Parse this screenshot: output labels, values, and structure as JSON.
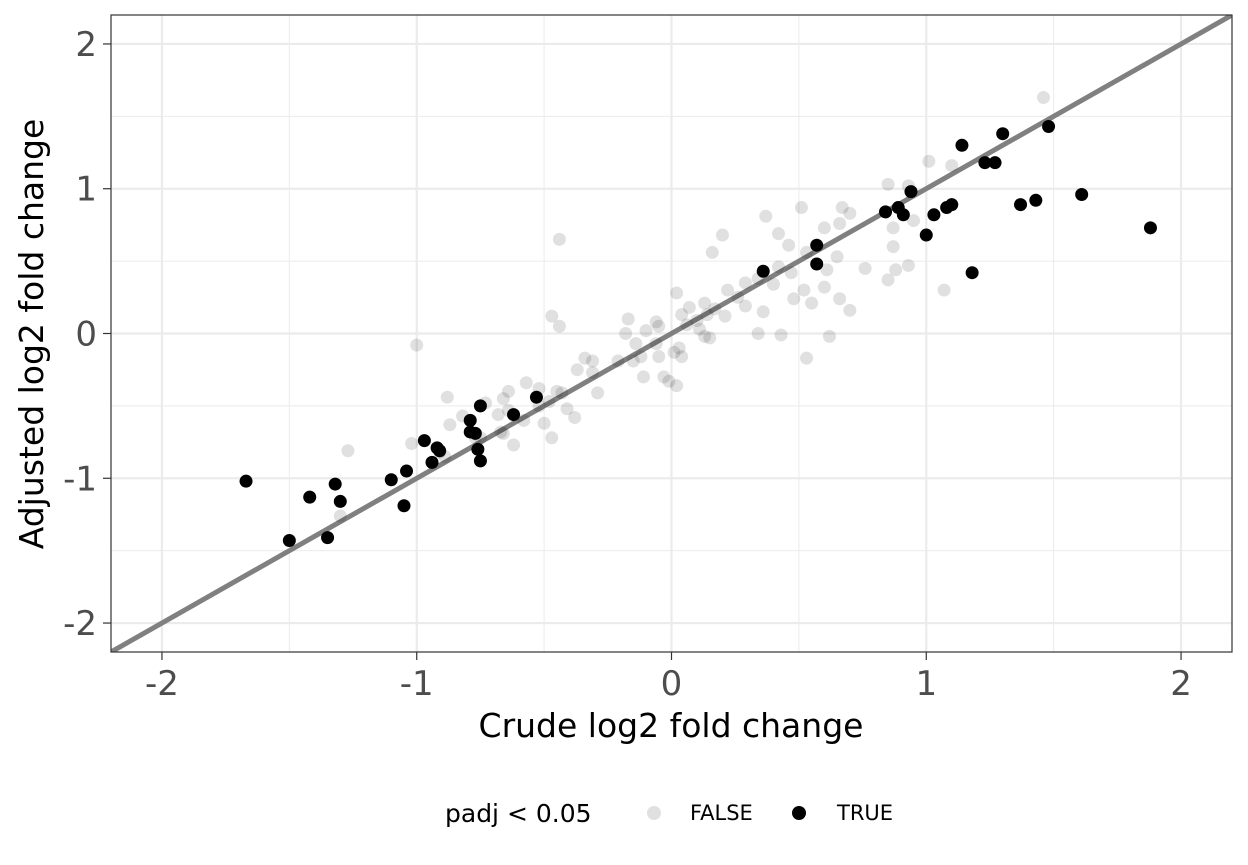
{
  "chart_data": {
    "type": "scatter",
    "xlabel": "Crude log2 fold change",
    "ylabel": "Adjusted log2 fold change",
    "xlim": [
      -2.2,
      2.2
    ],
    "ylim": [
      -2.2,
      2.2
    ],
    "x_ticks": [
      -2,
      -1,
      0,
      1,
      2
    ],
    "y_ticks": [
      -2,
      -1,
      0,
      1,
      2
    ],
    "x_tick_labels": [
      "-2",
      "-1",
      "0",
      "1",
      "2"
    ],
    "y_tick_labels": [
      "-2",
      "-1",
      "0",
      "1",
      "2"
    ],
    "grid": true,
    "reference_line": {
      "slope": 1,
      "intercept": 0,
      "color": "#808080"
    },
    "legend": {
      "title": "padj < 0.05",
      "position": "bottom",
      "entries": [
        {
          "label": "FALSE",
          "color": "#000000",
          "opacity": 0.12
        },
        {
          "label": "TRUE",
          "color": "#000000",
          "opacity": 1
        }
      ]
    },
    "series": [
      {
        "name": "FALSE",
        "color": "#000000",
        "opacity": 0.12,
        "points": [
          [
            1.46,
            1.63
          ],
          [
            1.01,
            1.19
          ],
          [
            1.1,
            1.16
          ],
          [
            0.85,
            1.03
          ],
          [
            0.93,
            1.02
          ],
          [
            0.7,
            0.83
          ],
          [
            0.51,
            0.87
          ],
          [
            0.67,
            0.87
          ],
          [
            0.37,
            0.81
          ],
          [
            0.95,
            0.78
          ],
          [
            0.87,
            0.73
          ],
          [
            0.6,
            0.73
          ],
          [
            0.66,
            0.76
          ],
          [
            0.42,
            0.69
          ],
          [
            0.2,
            0.68
          ],
          [
            -0.44,
            0.65
          ],
          [
            0.46,
            0.61
          ],
          [
            0.16,
            0.56
          ],
          [
            0.87,
            0.6
          ],
          [
            0.53,
            0.56
          ],
          [
            0.65,
            0.53
          ],
          [
            0.93,
            0.47
          ],
          [
            0.88,
            0.44
          ],
          [
            0.76,
            0.45
          ],
          [
            0.61,
            0.44
          ],
          [
            0.42,
            0.46
          ],
          [
            0.47,
            0.42
          ],
          [
            0.34,
            0.38
          ],
          [
            0.4,
            0.34
          ],
          [
            0.29,
            0.35
          ],
          [
            0.52,
            0.3
          ],
          [
            0.6,
            0.32
          ],
          [
            0.85,
            0.37
          ],
          [
            1.07,
            0.3
          ],
          [
            0.22,
            0.3
          ],
          [
            0.26,
            0.25
          ],
          [
            0.48,
            0.24
          ],
          [
            0.55,
            0.21
          ],
          [
            0.66,
            0.24
          ],
          [
            0.7,
            0.16
          ],
          [
            0.36,
            0.15
          ],
          [
            0.29,
            0.19
          ],
          [
            0.13,
            0.21
          ],
          [
            0.17,
            0.17
          ],
          [
            0.21,
            0.12
          ],
          [
            0.02,
            0.28
          ],
          [
            0.07,
            0.18
          ],
          [
            0.04,
            0.13
          ],
          [
            0.14,
            0.13
          ],
          [
            0.1,
            0.09
          ],
          [
            0.06,
            0.06
          ],
          [
            -0.17,
            0.1
          ],
          [
            -0.47,
            0.12
          ],
          [
            -0.44,
            0.05
          ],
          [
            -0.06,
            0.08
          ],
          [
            -0.05,
            0.05
          ],
          [
            -0.1,
            0.02
          ],
          [
            0.11,
            0.03
          ],
          [
            0.13,
            -0.02
          ],
          [
            0.15,
            -0.03
          ],
          [
            0.34,
            0.0
          ],
          [
            0.43,
            -0.01
          ],
          [
            0.62,
            -0.02
          ],
          [
            -0.18,
            0.0
          ],
          [
            -0.14,
            -0.07
          ],
          [
            -0.06,
            -0.07
          ],
          [
            0.03,
            -0.1
          ],
          [
            0.01,
            -0.13
          ],
          [
            -0.12,
            -0.16
          ],
          [
            -0.21,
            -0.19
          ],
          [
            -0.15,
            -0.19
          ],
          [
            -0.05,
            -0.16
          ],
          [
            0.04,
            -0.16
          ],
          [
            0.53,
            -0.17
          ],
          [
            -1.0,
            -0.08
          ],
          [
            -0.34,
            -0.17
          ],
          [
            -0.31,
            -0.19
          ],
          [
            -0.31,
            -0.27
          ],
          [
            -0.37,
            -0.25
          ],
          [
            -0.11,
            -0.3
          ],
          [
            -0.03,
            -0.3
          ],
          [
            -0.01,
            -0.33
          ],
          [
            0.02,
            -0.36
          ],
          [
            -0.29,
            -0.41
          ],
          [
            -0.43,
            -0.41
          ],
          [
            -0.45,
            -0.4
          ],
          [
            -0.52,
            -0.38
          ],
          [
            -0.57,
            -0.34
          ],
          [
            -0.64,
            -0.4
          ],
          [
            -0.88,
            -0.44
          ],
          [
            -0.66,
            -0.45
          ],
          [
            -0.73,
            -0.48
          ],
          [
            -0.48,
            -0.47
          ],
          [
            -0.52,
            -0.5
          ],
          [
            -0.41,
            -0.52
          ],
          [
            -0.64,
            -0.53
          ],
          [
            -0.68,
            -0.56
          ],
          [
            -0.38,
            -0.58
          ],
          [
            -0.5,
            -0.62
          ],
          [
            -0.58,
            -0.6
          ],
          [
            -0.82,
            -0.57
          ],
          [
            -0.87,
            -0.63
          ],
          [
            -0.67,
            -0.68
          ],
          [
            -0.66,
            -0.69
          ],
          [
            -0.47,
            -0.72
          ],
          [
            -0.75,
            -0.72
          ],
          [
            -0.77,
            -0.72
          ],
          [
            -0.62,
            -0.77
          ],
          [
            -1.02,
            -0.76
          ],
          [
            -1.27,
            -0.81
          ],
          [
            -0.91,
            -0.82
          ],
          [
            -0.89,
            -0.85
          ],
          [
            -1.3,
            -1.26
          ]
        ]
      },
      {
        "name": "TRUE",
        "color": "#000000",
        "opacity": 1,
        "points": [
          [
            1.48,
            1.43
          ],
          [
            1.3,
            1.38
          ],
          [
            1.14,
            1.3
          ],
          [
            1.27,
            1.18
          ],
          [
            1.23,
            1.18
          ],
          [
            0.94,
            0.98
          ],
          [
            1.61,
            0.96
          ],
          [
            1.43,
            0.92
          ],
          [
            1.37,
            0.89
          ],
          [
            1.1,
            0.89
          ],
          [
            1.08,
            0.87
          ],
          [
            0.89,
            0.87
          ],
          [
            0.91,
            0.82
          ],
          [
            0.84,
            0.84
          ],
          [
            1.03,
            0.82
          ],
          [
            1.88,
            0.73
          ],
          [
            1.0,
            0.68
          ],
          [
            0.57,
            0.61
          ],
          [
            0.57,
            0.48
          ],
          [
            0.36,
            0.43
          ],
          [
            1.18,
            0.42
          ],
          [
            -0.53,
            -0.44
          ],
          [
            -0.62,
            -0.56
          ],
          [
            -0.75,
            -0.5
          ],
          [
            -0.79,
            -0.6
          ],
          [
            -0.79,
            -0.68
          ],
          [
            -0.77,
            -0.69
          ],
          [
            -0.97,
            -0.74
          ],
          [
            -0.92,
            -0.79
          ],
          [
            -0.91,
            -0.81
          ],
          [
            -0.76,
            -0.8
          ],
          [
            -0.75,
            -0.88
          ],
          [
            -0.94,
            -0.89
          ],
          [
            -1.04,
            -0.95
          ],
          [
            -1.1,
            -1.01
          ],
          [
            -1.32,
            -1.04
          ],
          [
            -1.67,
            -1.02
          ],
          [
            -1.42,
            -1.13
          ],
          [
            -1.3,
            -1.16
          ],
          [
            -1.05,
            -1.19
          ],
          [
            -1.35,
            -1.41
          ],
          [
            -1.5,
            -1.43
          ]
        ]
      }
    ]
  }
}
